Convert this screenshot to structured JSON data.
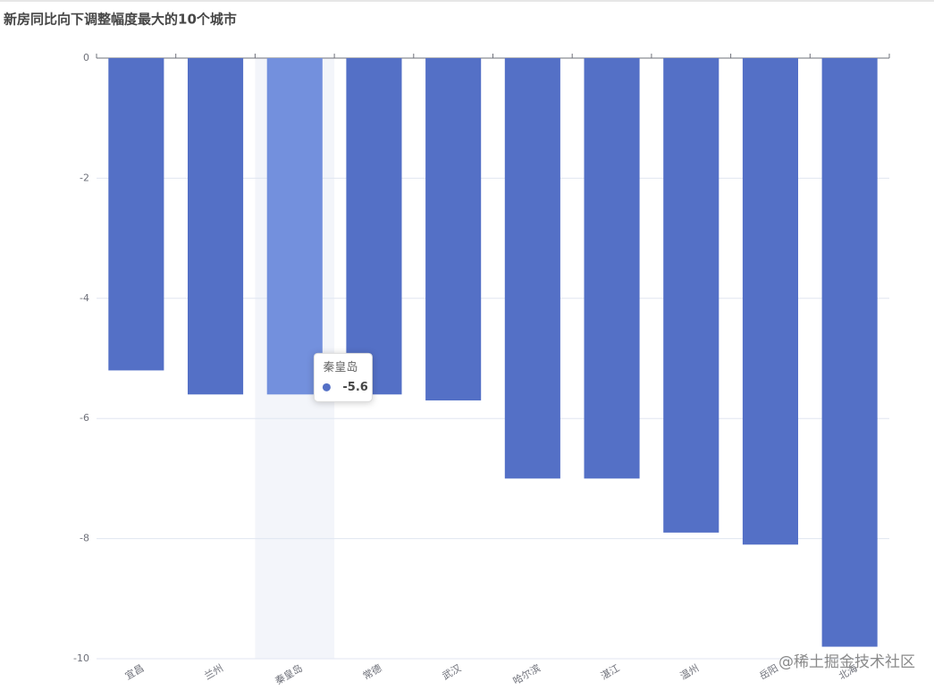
{
  "chart_data": {
    "type": "bar",
    "title": "新房同比向下调整幅度最大的10个城市",
    "categories": [
      "宜昌",
      "兰州",
      "秦皇岛",
      "常德",
      "武汉",
      "哈尔滨",
      "湛江",
      "温州",
      "岳阳",
      "北海"
    ],
    "values": [
      -5.2,
      -5.6,
      -5.6,
      -5.6,
      -5.7,
      -7,
      -7,
      -7.9,
      -8.1,
      -9.8
    ],
    "color": "#5470c6",
    "highlight_color": "#7390dd",
    "ylim": [
      -10,
      0
    ],
    "yticks": [
      0,
      -2,
      -4,
      -6,
      -8,
      -10
    ],
    "grid": true,
    "tooltip": {
      "category": "秦皇岛",
      "value": -5.6
    },
    "watermark": "@稀土掘金技术社区"
  }
}
